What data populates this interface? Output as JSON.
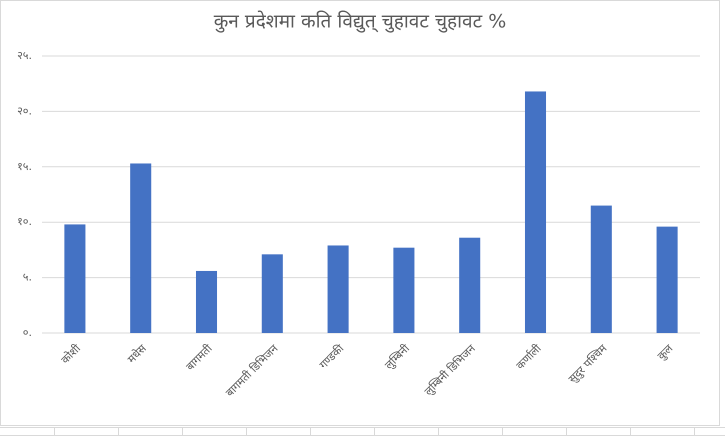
{
  "chart_data": {
    "type": "bar",
    "title": "कुन प्रदेशमा कति विद्युत् चुहावट चुहावट %",
    "categories": [
      "कोशी",
      "मधेस",
      "बागमती",
      "बागमती डिभिजन",
      "गण्डकी",
      "लुम्बिनी",
      "लुम्बिनी डिभिजन",
      "कर्णाली",
      "सुदुर पश्चिम",
      "कुल"
    ],
    "values": [
      9.8,
      15.3,
      5.6,
      7.1,
      7.9,
      7.7,
      8.6,
      21.8,
      11.5,
      9.6
    ],
    "color": "#4472c4",
    "ylim": [
      0,
      25
    ],
    "yticks": [
      {
        "value": 0,
        "label": "०."
      },
      {
        "value": 5,
        "label": "५."
      },
      {
        "value": 10,
        "label": "१०."
      },
      {
        "value": 15,
        "label": "१५."
      },
      {
        "value": 20,
        "label": "२०."
      },
      {
        "value": 25,
        "label": "२५."
      }
    ],
    "grid": true
  }
}
